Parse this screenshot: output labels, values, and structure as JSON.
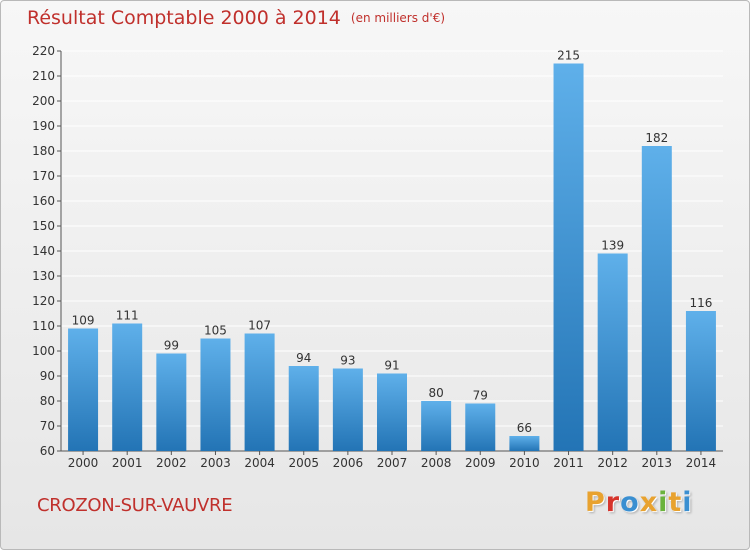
{
  "header": {
    "title": "Résultat Comptable 2000 à 2014",
    "unit": "(en milliers d'€)"
  },
  "footer": {
    "commune": "CROZON-SUR-VAUVRE",
    "logo_letters": [
      "P",
      "r",
      "o",
      "x",
      "i",
      "t",
      "i"
    ],
    "logo_colors": [
      "#e8a22f",
      "#d6342b",
      "#3a8fd1",
      "#e8a22f",
      "#6ab33c",
      "#e8a22f",
      "#3a8fd1"
    ]
  },
  "colors": {
    "bar_light": "#5fb0ea",
    "bar_dark": "#2374b5",
    "grid": "#ffffff",
    "title": "#c0302c"
  },
  "chart_data": {
    "type": "bar",
    "title": "Résultat Comptable 2000 à 2014",
    "ylabel": "",
    "xlabel": "",
    "ylim": [
      60,
      220
    ],
    "y_ticks": [
      60,
      70,
      80,
      90,
      100,
      110,
      120,
      130,
      140,
      150,
      160,
      170,
      180,
      190,
      200,
      210,
      220
    ],
    "grid": true,
    "categories": [
      "2000",
      "2001",
      "2002",
      "2003",
      "2004",
      "2005",
      "2006",
      "2007",
      "2008",
      "2009",
      "2010",
      "2011",
      "2012",
      "2013",
      "2014"
    ],
    "values": [
      109,
      111,
      99,
      105,
      107,
      94,
      93,
      91,
      80,
      79,
      66,
      215,
      139,
      182,
      116
    ]
  }
}
